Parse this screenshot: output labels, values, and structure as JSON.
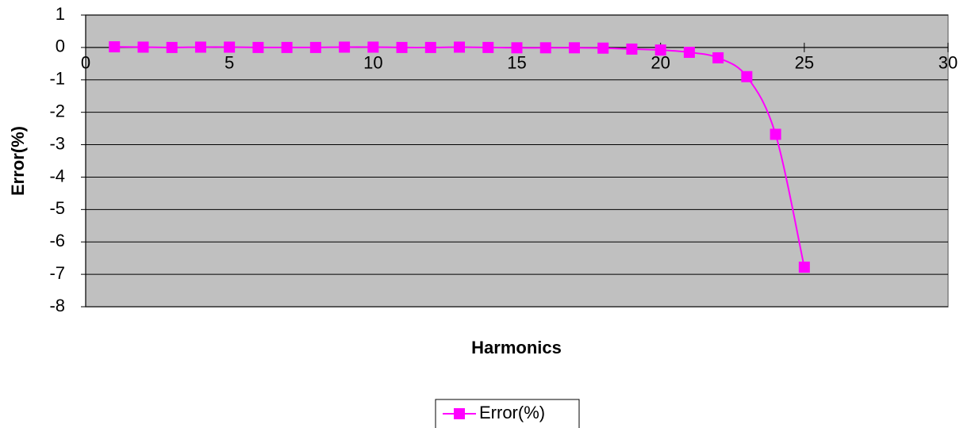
{
  "chart_data": {
    "type": "line",
    "x_label": "Harmonics",
    "y_label": "Error(%)",
    "x": [
      1,
      2,
      3,
      4,
      5,
      6,
      7,
      8,
      9,
      10,
      11,
      12,
      13,
      14,
      15,
      16,
      17,
      18,
      19,
      20,
      21,
      22,
      23,
      24,
      25
    ],
    "series": [
      {
        "name": "Error(%)",
        "color": "#ff00ff",
        "values": [
          0.02,
          0.01,
          0,
          0.01,
          0.01,
          0,
          0,
          0,
          0.01,
          0.01,
          0,
          0,
          0.01,
          0,
          -0.01,
          -0.01,
          -0.01,
          -0.02,
          -0.05,
          -0.08,
          -0.15,
          -0.32,
          -0.9,
          -2.68,
          -6.78
        ]
      }
    ],
    "xlim": [
      0,
      30
    ],
    "xticks": [
      0,
      5,
      10,
      15,
      20,
      25,
      30
    ],
    "ylim": [
      -8,
      1
    ],
    "yticks": [
      -8,
      -7,
      -6,
      -5,
      -4,
      -3,
      -2,
      -1,
      0,
      1
    ],
    "grid": true,
    "background": "#c0c0c0",
    "legend": "bottom"
  }
}
